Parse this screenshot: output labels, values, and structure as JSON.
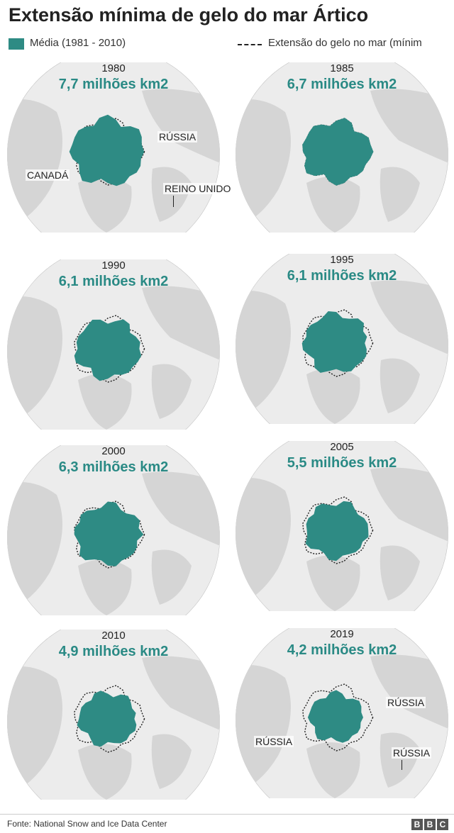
{
  "title": "Extensão mínima de gelo do mar Ártico",
  "legend": {
    "average_label": "Média (1981 - 2010)",
    "extent_label": "Extensão do gelo no mar (mínim"
  },
  "colors": {
    "ice": "#2e8b84",
    "ice_text": "#2a8a85",
    "land": "#d5d5d5",
    "ocean": "#ececec",
    "globe_edge": "#bdbdbd"
  },
  "panels": [
    {
      "year": "1980",
      "extent": "7,7 milhões km2",
      "extent_value_million_km2": 7.7
    },
    {
      "year": "1985",
      "extent": "6,7 milhões km2",
      "extent_value_million_km2": 6.7
    },
    {
      "year": "1990",
      "extent": "6,1 milhões km2",
      "extent_value_million_km2": 6.1
    },
    {
      "year": "1995",
      "extent": "6,1 milhões km2",
      "extent_value_million_km2": 6.1
    },
    {
      "year": "2000",
      "extent": "6,3 milhões km2",
      "extent_value_million_km2": 6.3
    },
    {
      "year": "2005",
      "extent": "5,5 milhões km2",
      "extent_value_million_km2": 5.5
    },
    {
      "year": "2010",
      "extent": "4,9 milhões km2",
      "extent_value_million_km2": 4.9
    },
    {
      "year": "2019",
      "extent": "4,2 milhões km2",
      "extent_value_million_km2": 4.2
    }
  ],
  "map_labels": {
    "russia": "RÚSSIA",
    "canada": "CANADÁ",
    "uk": "REINO UNIDO",
    "russia_2019_right": "RÚSSIA",
    "russia_2019_left": "RÚSSIA",
    "russia_2019_bottom": "RÚSSIA"
  },
  "footer": {
    "source": "Fonte: National Snow and Ice Data Center",
    "logo_letters": [
      "B",
      "B",
      "C"
    ]
  }
}
